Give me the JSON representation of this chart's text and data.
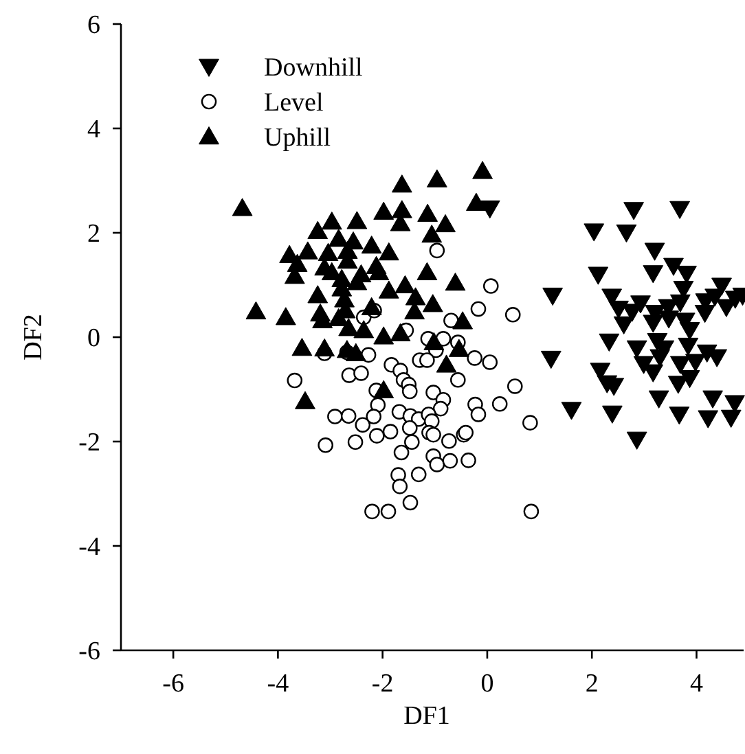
{
  "chart_data": {
    "type": "scatter",
    "xlabel": "DF1",
    "ylabel": "DF2",
    "xlim": [
      -7,
      4.9
    ],
    "ylim": [
      -6,
      6
    ],
    "xticks": [
      -6,
      -4,
      -2,
      0,
      2,
      4
    ],
    "yticks": [
      -6,
      -4,
      -2,
      0,
      2,
      4,
      6
    ],
    "grid": false,
    "legend": "top left",
    "series": [
      {
        "name": "Downhill",
        "color": "#000000",
        "marker": "triangle-down",
        "x": [
          2.8,
          3.68,
          2.04,
          2.66,
          3.2,
          2.12,
          3.17,
          3.56,
          3.81,
          1.25,
          3.75,
          4.48,
          2.38,
          2.51,
          2.77,
          2.93,
          3.21,
          3.46,
          3.69,
          4.17,
          4.35,
          4.57,
          4.74,
          4.16,
          2.61,
          3.17,
          3.47,
          3.78,
          3.87,
          2.33,
          2.86,
          3.25,
          3.38,
          3.84,
          3.3,
          2.99,
          3.17,
          3.69,
          3.98,
          4.2,
          4.39,
          1.22,
          2.16,
          2.29,
          2.42,
          3.65,
          3.87,
          3.28,
          4.31,
          4.73,
          1.61,
          2.39,
          3.67,
          4.22,
          4.66,
          2.86,
          0.05,
          4.88
        ],
        "values": [
          2.44,
          2.46,
          2.03,
          2.01,
          1.66,
          1.2,
          1.23,
          1.37,
          1.22,
          0.8,
          0.93,
          0.99,
          0.78,
          0.55,
          0.49,
          0.65,
          0.47,
          0.58,
          0.67,
          0.69,
          0.78,
          0.58,
          0.74,
          0.47,
          0.25,
          0.28,
          0.36,
          0.32,
          0.14,
          -0.08,
          -0.21,
          -0.07,
          -0.21,
          -0.16,
          -0.38,
          -0.51,
          -0.67,
          -0.51,
          -0.47,
          -0.29,
          -0.38,
          -0.41,
          -0.64,
          -0.88,
          -0.93,
          -0.89,
          -0.78,
          -1.17,
          -1.17,
          -1.26,
          -1.39,
          -1.46,
          -1.48,
          -1.55,
          -1.54,
          -1.96,
          2.47,
          0.8
        ]
      },
      {
        "name": "Level",
        "color": "#000000",
        "marker": "circle",
        "x": [
          -0.96,
          0.07,
          -0.17,
          0.49,
          -0.69,
          -2.36,
          -2.16,
          -1.55,
          -1.13,
          -0.84,
          -0.56,
          -0.98,
          -3.11,
          -2.68,
          -2.27,
          -1.83,
          -1.66,
          -1.29,
          -1.15,
          -0.24,
          0.05,
          -3.68,
          -2.64,
          -2.41,
          -1.6,
          -1.5,
          -1.48,
          -1.03,
          -0.56,
          0.53,
          -2.12,
          -0.84,
          -2.09,
          -0.89,
          -0.23,
          -0.17,
          0.24,
          0.82,
          -2.91,
          -2.65,
          -2.38,
          -2.17,
          -1.68,
          -1.47,
          -1.31,
          -1.12,
          -1.06,
          -1.48,
          -2.11,
          -1.85,
          -1.11,
          -1.03,
          -0.73,
          -0.45,
          -0.41,
          -3.09,
          -2.52,
          -1.44,
          -1.64,
          -1.03,
          -0.96,
          -0.71,
          -0.36,
          -1.7,
          -1.67,
          -1.31,
          -1.47,
          -2.2,
          -1.89,
          0.84
        ],
        "values": [
          1.66,
          0.98,
          0.54,
          0.43,
          0.32,
          0.38,
          0.51,
          0.13,
          -0.03,
          -0.03,
          -0.1,
          -0.25,
          -0.31,
          -0.29,
          -0.34,
          -0.53,
          -0.64,
          -0.44,
          -0.44,
          -0.4,
          -0.48,
          -0.83,
          -0.73,
          -0.69,
          -0.82,
          -0.91,
          -1.04,
          -1.06,
          -0.82,
          -0.94,
          -1.02,
          -1.2,
          -1.3,
          -1.37,
          -1.29,
          -1.48,
          -1.28,
          -1.64,
          -1.52,
          -1.51,
          -1.68,
          -1.52,
          -1.43,
          -1.51,
          -1.57,
          -1.48,
          -1.61,
          -1.74,
          -1.89,
          -1.81,
          -1.83,
          -1.87,
          -1.99,
          -1.87,
          -1.83,
          -2.07,
          -2.01,
          -2.01,
          -2.21,
          -2.28,
          -2.44,
          -2.37,
          -2.36,
          -2.64,
          -2.86,
          -2.63,
          -3.17,
          -3.34,
          -3.34,
          -3.34
        ]
      },
      {
        "name": "Uphill",
        "color": "#000000",
        "marker": "triangle",
        "x": [
          -4.68,
          -1.63,
          -0.96,
          -0.09,
          -0.21,
          -1.98,
          -1.63,
          -1.14,
          -1.66,
          -0.8,
          -1.06,
          -2.97,
          -2.49,
          -3.24,
          -2.84,
          -2.56,
          -3.43,
          -3.78,
          -3.04,
          -2.67,
          -2.21,
          -1.88,
          -3.63,
          -3.68,
          -3.11,
          -2.97,
          -2.67,
          -2.12,
          -2.07,
          -2.78,
          -2.49,
          -2.41,
          -1.15,
          -0.61,
          -3.24,
          -2.78,
          -2.73,
          -1.88,
          -1.57,
          -1.37,
          -1.04,
          -1.39,
          -4.42,
          -3.85,
          -3.19,
          -3.15,
          -2.84,
          -2.71,
          -2.21,
          -2.65,
          -2.36,
          -1.98,
          -1.66,
          -0.47,
          -1.02,
          -0.54,
          -3.54,
          -3.11,
          -2.68,
          -2.51,
          -0.78,
          -1.98,
          -3.48
        ],
        "values": [
          2.47,
          2.92,
          3.02,
          3.18,
          2.57,
          2.4,
          2.43,
          2.36,
          2.18,
          2.16,
          1.96,
          2.21,
          2.22,
          2.03,
          1.88,
          1.83,
          1.64,
          1.57,
          1.61,
          1.65,
          1.75,
          1.62,
          1.4,
          1.17,
          1.33,
          1.24,
          1.46,
          1.36,
          1.24,
          1.11,
          1.05,
          1.2,
          1.24,
          1.04,
          0.8,
          0.93,
          0.72,
          0.89,
          0.99,
          0.76,
          0.63,
          0.49,
          0.49,
          0.38,
          0.45,
          0.32,
          0.36,
          0.51,
          0.57,
          0.17,
          0.13,
          0.01,
          0.07,
          0.3,
          -0.1,
          -0.23,
          -0.21,
          -0.22,
          -0.25,
          -0.31,
          -0.53,
          -1.02,
          -1.23
        ]
      }
    ]
  }
}
